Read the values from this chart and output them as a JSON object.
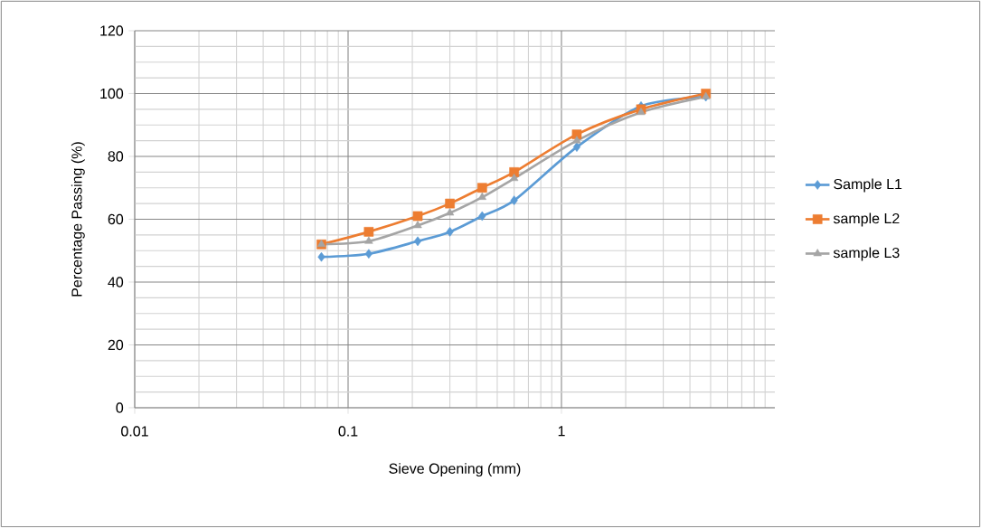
{
  "chart_data": {
    "type": "line",
    "xlabel": "Sieve Opening (mm)",
    "ylabel": "Percentage Passing (%)",
    "x": [
      0.075,
      0.125,
      0.212,
      0.3,
      0.425,
      0.6,
      1.18,
      2.36,
      4.75
    ],
    "series": [
      {
        "name": "Sample L1",
        "color": "#5b9bd5",
        "marker": "diamond",
        "values": [
          48,
          49,
          53,
          56,
          61,
          66,
          83,
          96,
          99
        ]
      },
      {
        "name": "sample L2",
        "color": "#ed7d31",
        "marker": "square",
        "values": [
          52,
          56,
          61,
          65,
          70,
          75,
          87,
          95,
          100
        ]
      },
      {
        "name": "sample L3",
        "color": "#a5a5a5",
        "marker": "triangle",
        "values": [
          52,
          53,
          58,
          62,
          67,
          73,
          85,
          94,
          99
        ]
      }
    ],
    "log": "x",
    "xlim": [
      0.01,
      10
    ],
    "xticks": [
      0.01,
      0.1,
      1
    ],
    "ylim": [
      0,
      120
    ],
    "yticks": [
      0,
      20,
      40,
      60,
      80,
      100,
      120
    ],
    "grid": true,
    "legend": "right"
  }
}
